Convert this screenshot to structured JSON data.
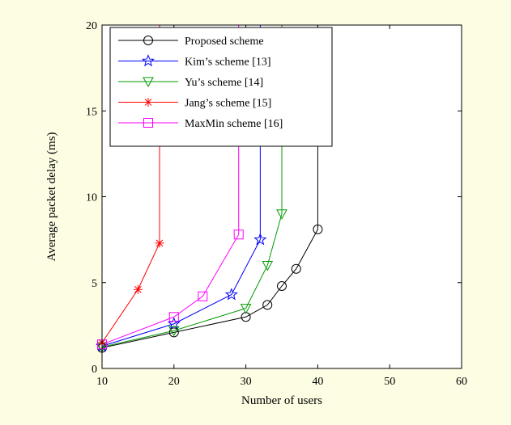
{
  "chart_data": {
    "type": "line",
    "title": "",
    "xlabel": "Number of users",
    "ylabel": "Average packet delay (ms)",
    "xlim": [
      10,
      60
    ],
    "ylim": [
      0,
      20
    ],
    "xticks": [
      "10",
      "20",
      "30",
      "40",
      "50",
      "60"
    ],
    "yticks": [
      "0",
      "5",
      "10",
      "15",
      "20"
    ],
    "grid": false,
    "legend_position": "top-left",
    "series": [
      {
        "name": "Proposed scheme",
        "color": "#000000",
        "marker": "circle",
        "x": [
          10,
          20,
          30,
          33,
          35,
          37,
          40,
          40
        ],
        "y": [
          1.2,
          2.1,
          3.0,
          3.7,
          4.8,
          5.8,
          8.1,
          20.5
        ]
      },
      {
        "name": "Kim’s scheme [13]",
        "color": "#0000ff",
        "marker": "star",
        "x": [
          10,
          20,
          28,
          32,
          32
        ],
        "y": [
          1.3,
          2.6,
          4.3,
          7.5,
          20.5
        ]
      },
      {
        "name": "Yu’s scheme [14]",
        "color": "#009900",
        "marker": "triangle-down",
        "x": [
          10,
          20,
          30,
          33,
          35,
          35
        ],
        "y": [
          1.25,
          2.2,
          3.5,
          6.0,
          9.0,
          20.5
        ]
      },
      {
        "name": "Jang’s scheme [15]",
        "color": "#ff0000",
        "marker": "asterisk",
        "x": [
          10,
          15,
          18,
          18
        ],
        "y": [
          1.5,
          4.6,
          7.3,
          20.5
        ]
      },
      {
        "name": "MaxMin scheme [16]",
        "color": "#ff00ff",
        "marker": "square",
        "x": [
          10,
          20,
          24,
          29,
          29
        ],
        "y": [
          1.4,
          3.0,
          4.2,
          7.8,
          20.5
        ]
      }
    ]
  }
}
